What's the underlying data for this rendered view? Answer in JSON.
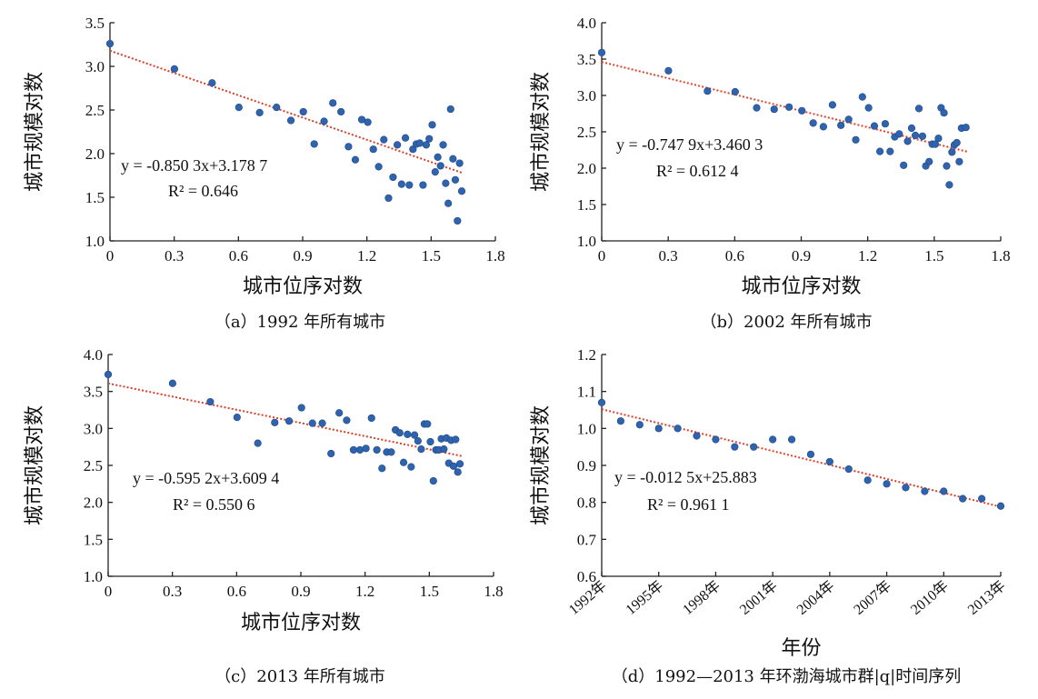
{
  "chart_data": [
    {
      "id": "a",
      "type": "scatter",
      "caption": "（a）1992 年所有城市",
      "xlabel": "城市位序对数",
      "ylabel": "城市规模对数",
      "xlim": [
        0,
        1.8
      ],
      "ylim": [
        1.0,
        3.5
      ],
      "xticks": [
        "0",
        "0.3",
        "0.6",
        "0.9",
        "1.2",
        "1.5",
        "1.8"
      ],
      "yticks": [
        "1.0",
        "1.5",
        "2.0",
        "2.5",
        "3.0",
        "3.5"
      ],
      "trendline": {
        "slope": -0.8503,
        "intercept": 3.1787,
        "x_range": [
          0,
          1.65
        ]
      },
      "equation_text": "y = -0.850 3x+3.178 7",
      "r2_text": "R² = 0.646",
      "points": [
        [
          0.0,
          3.26
        ],
        [
          0.301,
          2.97
        ],
        [
          0.477,
          2.81
        ],
        [
          0.602,
          2.53
        ],
        [
          0.699,
          2.47
        ],
        [
          0.778,
          2.53
        ],
        [
          0.845,
          2.38
        ],
        [
          0.903,
          2.48
        ],
        [
          0.954,
          2.11
        ],
        [
          1.0,
          2.37
        ],
        [
          1.041,
          2.58
        ],
        [
          1.079,
          2.48
        ],
        [
          1.114,
          2.08
        ],
        [
          1.146,
          1.93
        ],
        [
          1.176,
          2.39
        ],
        [
          1.204,
          2.36
        ],
        [
          1.23,
          2.05
        ],
        [
          1.255,
          1.85
        ],
        [
          1.279,
          2.16
        ],
        [
          1.301,
          1.49
        ],
        [
          1.322,
          1.73
        ],
        [
          1.342,
          2.1
        ],
        [
          1.362,
          1.65
        ],
        [
          1.38,
          2.18
        ],
        [
          1.398,
          1.64
        ],
        [
          1.415,
          2.05
        ],
        [
          1.431,
          2.11
        ],
        [
          1.447,
          2.12
        ],
        [
          1.462,
          1.64
        ],
        [
          1.477,
          2.1
        ],
        [
          1.491,
          2.17
        ],
        [
          1.505,
          2.33
        ],
        [
          1.519,
          1.79
        ],
        [
          1.531,
          1.96
        ],
        [
          1.544,
          1.86
        ],
        [
          1.556,
          2.1
        ],
        [
          1.568,
          1.66
        ],
        [
          1.58,
          1.43
        ],
        [
          1.591,
          2.51
        ],
        [
          1.602,
          1.94
        ],
        [
          1.613,
          1.7
        ],
        [
          1.623,
          1.23
        ],
        [
          1.633,
          1.89
        ],
        [
          1.643,
          1.57
        ]
      ]
    },
    {
      "id": "b",
      "type": "scatter",
      "caption": "（b）2002 年所有城市",
      "xlabel": "城市位序对数",
      "ylabel": "城市规模对数",
      "xlim": [
        0,
        1.8
      ],
      "ylim": [
        1.0,
        4.0
      ],
      "xticks": [
        "0",
        "0.3",
        "0.6",
        "0.9",
        "1.2",
        "1.5",
        "1.8"
      ],
      "yticks": [
        "1.0",
        "1.5",
        "2.0",
        "2.5",
        "3.0",
        "3.5",
        "4.0"
      ],
      "trendline": {
        "slope": -0.7479,
        "intercept": 3.4603,
        "x_range": [
          0,
          1.65
        ]
      },
      "equation_text": "y = -0.747 9x+3.460 3",
      "r2_text": "R² = 0.612 4",
      "points": [
        [
          0.0,
          3.59
        ],
        [
          0.301,
          3.34
        ],
        [
          0.477,
          3.06
        ],
        [
          0.602,
          3.05
        ],
        [
          0.699,
          2.83
        ],
        [
          0.778,
          2.81
        ],
        [
          0.845,
          2.84
        ],
        [
          0.903,
          2.79
        ],
        [
          0.954,
          2.62
        ],
        [
          1.0,
          2.57
        ],
        [
          1.041,
          2.87
        ],
        [
          1.079,
          2.59
        ],
        [
          1.114,
          2.67
        ],
        [
          1.146,
          2.39
        ],
        [
          1.176,
          2.98
        ],
        [
          1.204,
          2.83
        ],
        [
          1.23,
          2.58
        ],
        [
          1.255,
          2.23
        ],
        [
          1.279,
          2.61
        ],
        [
          1.301,
          2.23
        ],
        [
          1.322,
          2.43
        ],
        [
          1.342,
          2.47
        ],
        [
          1.362,
          2.04
        ],
        [
          1.38,
          2.37
        ],
        [
          1.398,
          2.55
        ],
        [
          1.415,
          2.45
        ],
        [
          1.431,
          2.82
        ],
        [
          1.447,
          2.44
        ],
        [
          1.462,
          2.03
        ],
        [
          1.477,
          2.09
        ],
        [
          1.491,
          2.33
        ],
        [
          1.505,
          2.33
        ],
        [
          1.519,
          2.41
        ],
        [
          1.531,
          2.83
        ],
        [
          1.544,
          2.76
        ],
        [
          1.556,
          2.03
        ],
        [
          1.568,
          1.77
        ],
        [
          1.58,
          2.22
        ],
        [
          1.591,
          2.32
        ],
        [
          1.602,
          2.35
        ],
        [
          1.613,
          2.09
        ],
        [
          1.623,
          2.55
        ],
        [
          1.643,
          2.56
        ]
      ]
    },
    {
      "id": "c",
      "type": "scatter",
      "caption": "（c）2013 年所有城市",
      "xlabel": "城市位序对数",
      "ylabel": "城市规模对数",
      "xlim": [
        0,
        1.8
      ],
      "ylim": [
        1.0,
        4.0
      ],
      "xticks": [
        "0",
        "0.3",
        "0.6",
        "0.9",
        "1.2",
        "1.5",
        "1.8"
      ],
      "yticks": [
        "1.0",
        "1.5",
        "2.0",
        "2.5",
        "3.0",
        "3.5",
        "4.0"
      ],
      "trendline": {
        "slope": -0.5952,
        "intercept": 3.6094,
        "x_range": [
          0,
          1.65
        ]
      },
      "equation_text": "y = -0.595 2x+3.609 4",
      "r2_text": "R² = 0.550 6",
      "points": [
        [
          0.0,
          3.73
        ],
        [
          0.301,
          3.61
        ],
        [
          0.477,
          3.36
        ],
        [
          0.602,
          3.15
        ],
        [
          0.699,
          2.8
        ],
        [
          0.778,
          3.08
        ],
        [
          0.845,
          3.1
        ],
        [
          0.903,
          3.28
        ],
        [
          0.954,
          3.07
        ],
        [
          1.0,
          3.07
        ],
        [
          1.041,
          2.66
        ],
        [
          1.079,
          3.21
        ],
        [
          1.114,
          3.11
        ],
        [
          1.146,
          2.71
        ],
        [
          1.176,
          2.71
        ],
        [
          1.204,
          2.73
        ],
        [
          1.23,
          3.14
        ],
        [
          1.255,
          2.71
        ],
        [
          1.279,
          2.46
        ],
        [
          1.301,
          2.68
        ],
        [
          1.322,
          2.68
        ],
        [
          1.342,
          2.98
        ],
        [
          1.362,
          2.94
        ],
        [
          1.38,
          2.54
        ],
        [
          1.398,
          2.92
        ],
        [
          1.415,
          2.48
        ],
        [
          1.431,
          2.91
        ],
        [
          1.447,
          2.83
        ],
        [
          1.462,
          2.72
        ],
        [
          1.477,
          3.06
        ],
        [
          1.491,
          3.06
        ],
        [
          1.505,
          2.82
        ],
        [
          1.519,
          2.29
        ],
        [
          1.531,
          2.71
        ],
        [
          1.544,
          2.71
        ],
        [
          1.556,
          2.86
        ],
        [
          1.568,
          2.72
        ],
        [
          1.58,
          2.87
        ],
        [
          1.591,
          2.53
        ],
        [
          1.602,
          2.84
        ],
        [
          1.613,
          2.49
        ],
        [
          1.623,
          2.85
        ],
        [
          1.633,
          2.41
        ],
        [
          1.643,
          2.52
        ]
      ]
    },
    {
      "id": "d",
      "type": "scatter",
      "caption": "（d）1992—2013 年环渤海城市群|q|时间序列",
      "xlabel": "年份",
      "ylabel": "城市规模对数",
      "xlim": [
        1992,
        2013
      ],
      "ylim": [
        0.6,
        1.2
      ],
      "xticks": [
        "1992年",
        "1995年",
        "1998年",
        "2001年",
        "2004年",
        "2007年",
        "2010年",
        "2013年"
      ],
      "xtick_values": [
        1992,
        1995,
        1998,
        2001,
        2004,
        2007,
        2010,
        2013
      ],
      "yticks": [
        "0.6",
        "0.7",
        "0.8",
        "0.9",
        "1.0",
        "1.1",
        "1.2"
      ],
      "trendline": {
        "x_range": [
          1992,
          2013
        ],
        "y_range": [
          1.052,
          0.788
        ]
      },
      "equation_text": "y = -0.012 5x+25.883",
      "r2_text": "R² = 0.961 1",
      "points": [
        [
          1992,
          1.07
        ],
        [
          1993,
          1.02
        ],
        [
          1994,
          1.01
        ],
        [
          1995,
          1.0
        ],
        [
          1996,
          1.0
        ],
        [
          1997,
          0.98
        ],
        [
          1998,
          0.97
        ],
        [
          1999,
          0.95
        ],
        [
          2000,
          0.95
        ],
        [
          2001,
          0.97
        ],
        [
          2002,
          0.97
        ],
        [
          2003,
          0.93
        ],
        [
          2004,
          0.91
        ],
        [
          2005,
          0.89
        ],
        [
          2006,
          0.86
        ],
        [
          2007,
          0.85
        ],
        [
          2008,
          0.84
        ],
        [
          2009,
          0.83
        ],
        [
          2010,
          0.83
        ],
        [
          2011,
          0.81
        ],
        [
          2012,
          0.81
        ],
        [
          2013,
          0.79
        ]
      ]
    }
  ]
}
